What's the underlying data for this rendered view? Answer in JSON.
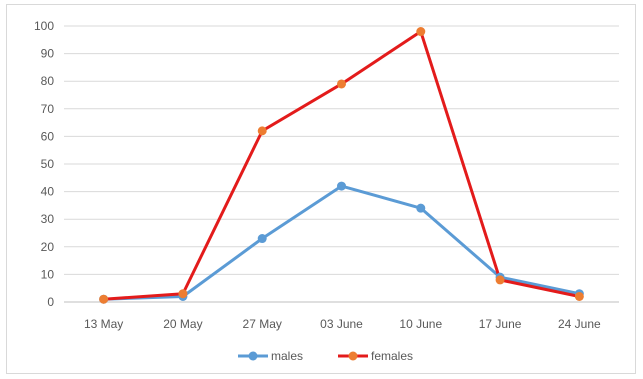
{
  "chart_data": {
    "type": "line",
    "categories": [
      "13 May",
      "20 May",
      "27 May",
      "03 June",
      "10 June",
      "17 June",
      "24 June"
    ],
    "series": [
      {
        "name": "males",
        "color": "#5B9BD5",
        "marker_color": "#5B9BD5",
        "values": [
          1,
          2,
          23,
          42,
          34,
          9,
          3
        ]
      },
      {
        "name": "females",
        "color": "#E31B1B",
        "marker_color": "#ED7D31",
        "values": [
          1,
          3,
          62,
          79,
          98,
          8,
          2
        ]
      }
    ],
    "yticks": [
      0,
      10,
      20,
      30,
      40,
      50,
      60,
      70,
      80,
      90,
      100
    ],
    "ylim": [
      0,
      100
    ],
    "grid": true,
    "legend_position": "bottom",
    "title": "",
    "xlabel": "",
    "ylabel": ""
  }
}
